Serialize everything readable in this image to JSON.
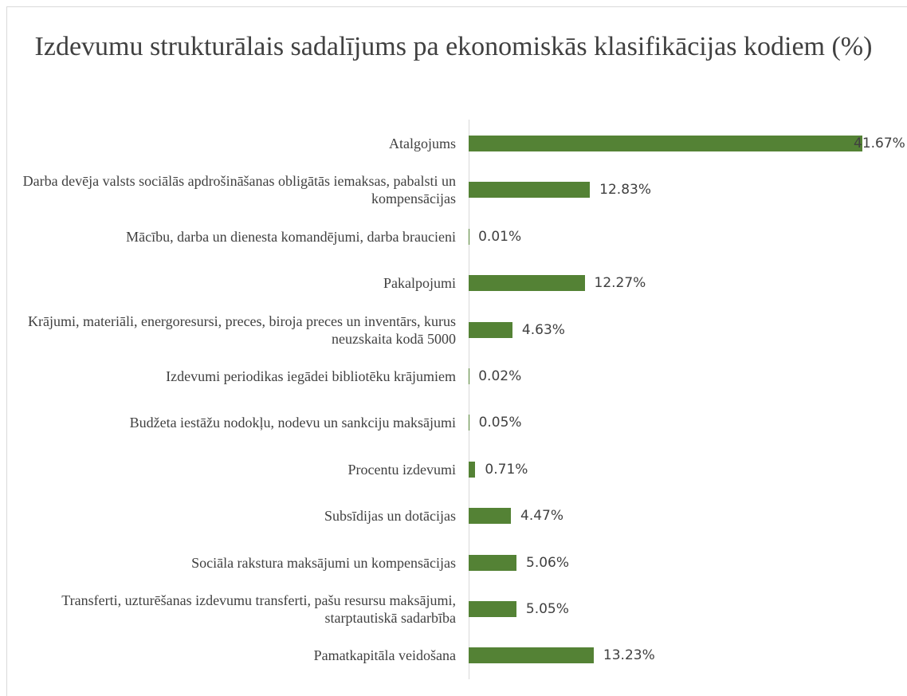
{
  "chart_data": {
    "type": "bar",
    "orientation": "horizontal",
    "title": "Izdevumu strukturālais sadalījums pa ekonomiskās klasifikācijas kodiem (%)",
    "categories": [
      "Atalgojums",
      "Darba devēja valsts sociālās apdrošināšanas obligātās iemaksas, pabalsti un kompensācijas",
      "Mācību, darba un dienesta komandējumi, darba braucieni",
      "Pakalpojumi",
      "Krājumi, materiāli, energoresursi, preces, biroja preces un inventārs, kurus neuzskaita kodā 5000",
      "Izdevumi periodikas iegādei bibliotēku krājumiem",
      "Budžeta iestāžu nodokļu, nodevu un sankciju maksājumi",
      "Procentu izdevumi",
      "Subsīdijas un dotācijas",
      "Sociāla rakstura maksājumi un kompensācijas",
      "Transferti, uzturēšanas izdevumu transferti, pašu resursu maksājumi, starptautiskā sadarbība",
      "Pamatkapitāla veidošana"
    ],
    "values": [
      41.67,
      12.83,
      0.01,
      12.27,
      4.63,
      0.02,
      0.05,
      0.71,
      4.47,
      5.06,
      5.05,
      13.23
    ],
    "value_labels": [
      "41.67%",
      "12.83%",
      "0.01%",
      "12.27%",
      "4.63%",
      "0.02%",
      "0.05%",
      "0.71%",
      "4.47%",
      "5.06%",
      "5.05%",
      "13.23%"
    ],
    "color": "#548235"
  }
}
